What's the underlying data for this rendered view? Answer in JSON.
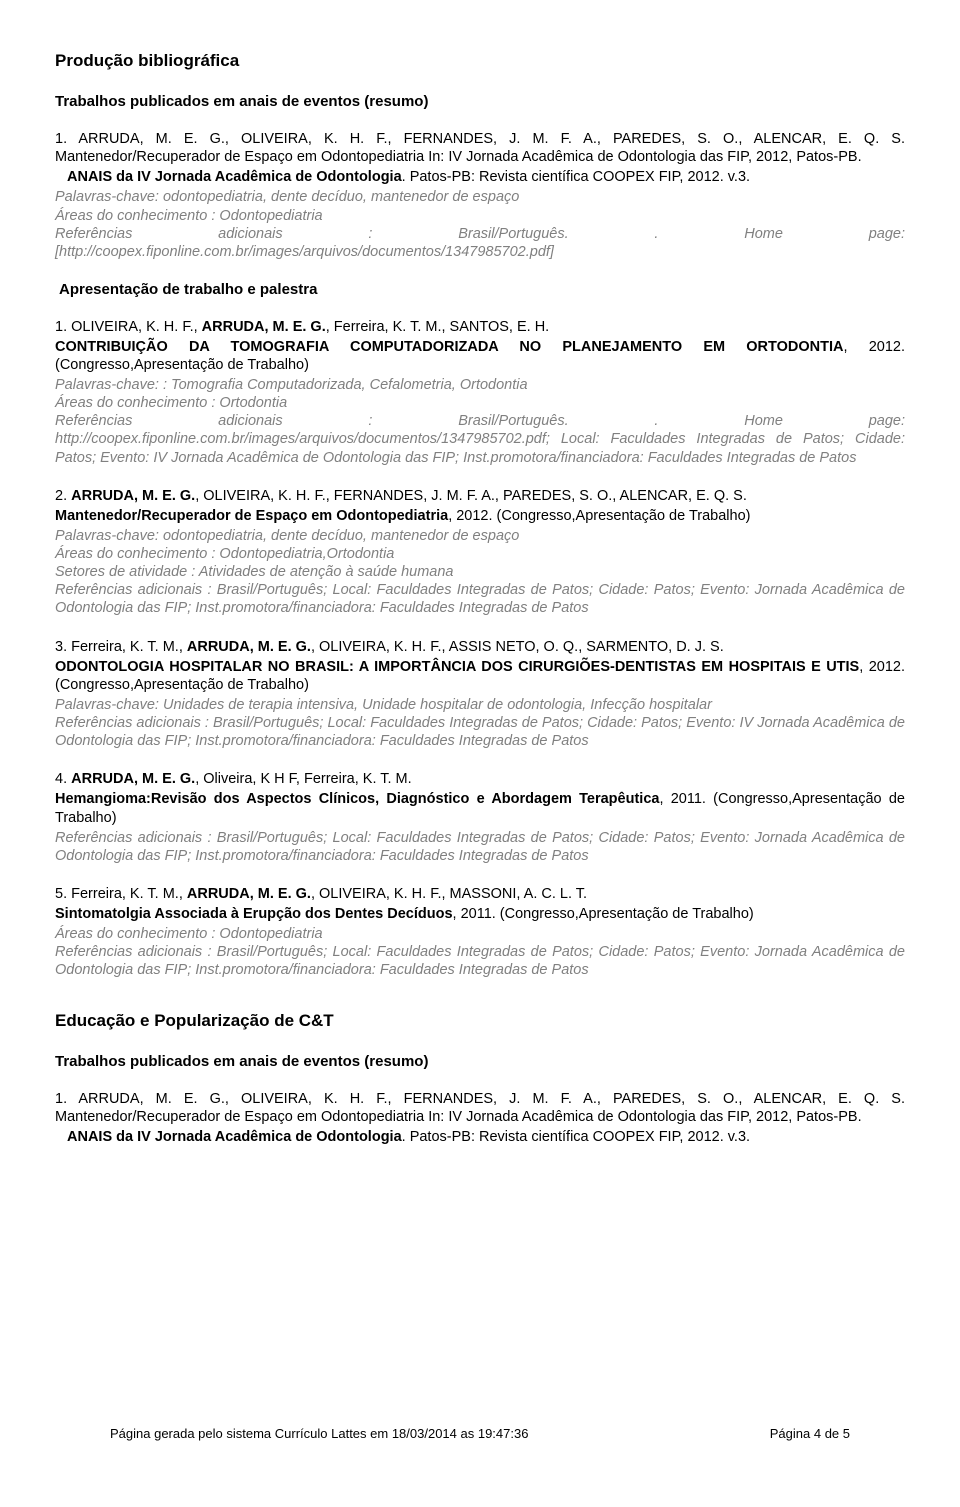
{
  "section1_title": "Produção bibliográfica",
  "section1_sub": "Trabalhos publicados em anais de eventos (resumo)",
  "pub1_text": "1. ARRUDA, M. E. G., OLIVEIRA, K. H. F., FERNANDES, J. M. F. A., PAREDES, S. O., ALENCAR, E. Q. S. Mantenedor/Recuperador de Espaço em Odontopediatria In: IV Jornada Acadêmica de Odontologia das FIP, 2012, Patos-PB.",
  "pub1_anais_bold": "ANAIS da IV Jornada Acadêmica de Odontologia",
  "pub1_anais_rest": ". Patos-PB: Revista científica COOPEX FIP, 2012. v.3.",
  "pub1_meta1": "Palavras-chave: odontopediatria, dente decíduo, mantenedor de espaço",
  "pub1_meta2": "Áreas do conhecimento : Odontopediatria",
  "pub1_meta3": "Referências adicionais : Brasil/Português. . Home page: [http://coopex.fiponline.com.br/images/arquivos/documentos/1347985702.pdf]",
  "subsection_title": "Apresentação de trabalho e palestra",
  "ap1_a": "1. OLIVEIRA, K. H. F., ",
  "ap1_bold": "ARRUDA, M. E. G.",
  "ap1_b": ", Ferreira, K. T. M., SANTOS, E. H.",
  "ap1_title_bold": "CONTRIBUIÇÃO DA TOMOGRAFIA COMPUTADORIZADA NO  PLANEJAMENTO EM ORTODONTIA",
  "ap1_rest": ", 2012.   (Congresso,Apresentação de Trabalho)",
  "ap1_meta1": "Palavras-chave: : Tomografia Computadorizada, Cefalometria, Ortodontia",
  "ap1_meta2": "Áreas do conhecimento : Ortodontia",
  "ap1_meta3": "Referências adicionais : Brasil/Português. . Home page: http://coopex.fiponline.com.br/images/arquivos/documentos/1347985702.pdf; Local: Faculdades Integradas de Patos; Cidade: Patos; Evento: IV Jornada Acadêmica de Odontologia das FIP; Inst.promotora/financiadora: Faculdades Integradas de Patos",
  "ap2_a": "2. ",
  "ap2_bold": "ARRUDA, M. E. G.",
  "ap2_b": ", OLIVEIRA, K. H. F., FERNANDES, J. M. F. A., PAREDES, S. O., ALENCAR, E. Q. S.",
  "ap2_title_bold": "Mantenedor/Recuperador de Espaço em Odontopediatria",
  "ap2_rest": ", 2012.   (Congresso,Apresentação de Trabalho)",
  "ap2_meta1": "Palavras-chave: odontopediatria, dente decíduo, mantenedor de espaço",
  "ap2_meta2": "Áreas do conhecimento : Odontopediatria,Ortodontia",
  "ap2_meta3": "Setores de atividade : Atividades de atenção à saúde humana",
  "ap2_meta4": "Referências adicionais : Brasil/Português; Local: Faculdades Integradas de Patos; Cidade: Patos; Evento: Jornada Acadêmica de Odontologia das FIP; Inst.promotora/financiadora: Faculdades Integradas de Patos",
  "ap3_a": "3. Ferreira, K. T. M., ",
  "ap3_bold": "ARRUDA, M. E. G.",
  "ap3_b": ", OLIVEIRA, K. H. F., ASSIS NETO, O. Q., SARMENTO, D. J. S.",
  "ap3_title_bold": "ODONTOLOGIA HOSPITALAR NO BRASIL: A IMPORTÂNCIA DOS  CIRURGIÕES-DENTISTAS EM HOSPITAIS E UTIS",
  "ap3_rest": ", 2012.   (Congresso,Apresentação de Trabalho)",
  "ap3_meta1": "Palavras-chave: Unidades de terapia intensiva, Unidade hospitalar de odontologia, Infecção   hospitalar",
  "ap3_meta2": "Referências adicionais : Brasil/Português; Local: Faculdades Integradas de Patos; Cidade: Patos; Evento: IV Jornada Acadêmica de Odontologia das FIP; Inst.promotora/financiadora: Faculdades Integradas de Patos",
  "ap4_a": "4. ",
  "ap4_bold": "ARRUDA, M. E. G.",
  "ap4_b": ", Oliveira, K H F, Ferreira, K. T. M.",
  "ap4_title_bold": "Hemangioma:Revisão dos Aspectos Clínicos, Diagnóstico e Abordagem Terapêutica",
  "ap4_rest": ", 2011. (Congresso,Apresentação de Trabalho)",
  "ap4_meta1": "Referências adicionais : Brasil/Português; Local: Faculdades Integradas de Patos; Cidade: Patos; Evento: Jornada Acadêmica de Odontologia das FIP; Inst.promotora/financiadora: Faculdades Integradas de Patos",
  "ap5_a": "5. Ferreira, K. T. M., ",
  "ap5_bold": "ARRUDA, M. E. G.",
  "ap5_b": ", OLIVEIRA, K. H. F., MASSONI, A. C. L. T.",
  "ap5_title_bold": "Sintomatolgia Associada à Erupção dos Dentes Decíduos",
  "ap5_rest": ", 2011.   (Congresso,Apresentação de Trabalho)",
  "ap5_meta1": "Áreas do conhecimento : Odontopediatria",
  "ap5_meta2": "Referências adicionais : Brasil/Português; Local: Faculdades Integradas de Patos; Cidade: Patos; Evento: Jornada Acadêmica de Odontologia das FIP; Inst.promotora/financiadora: Faculdades Integradas de Patos",
  "edupop_title": "Educação e Popularização de C&T",
  "edupop_sub": "Trabalhos publicados em anais de eventos (resumo)",
  "footer_left": "Página gerada pelo sistema Currículo Lattes em 18/03/2014 as 19:47:36",
  "footer_right": "Página 4 de 5"
}
